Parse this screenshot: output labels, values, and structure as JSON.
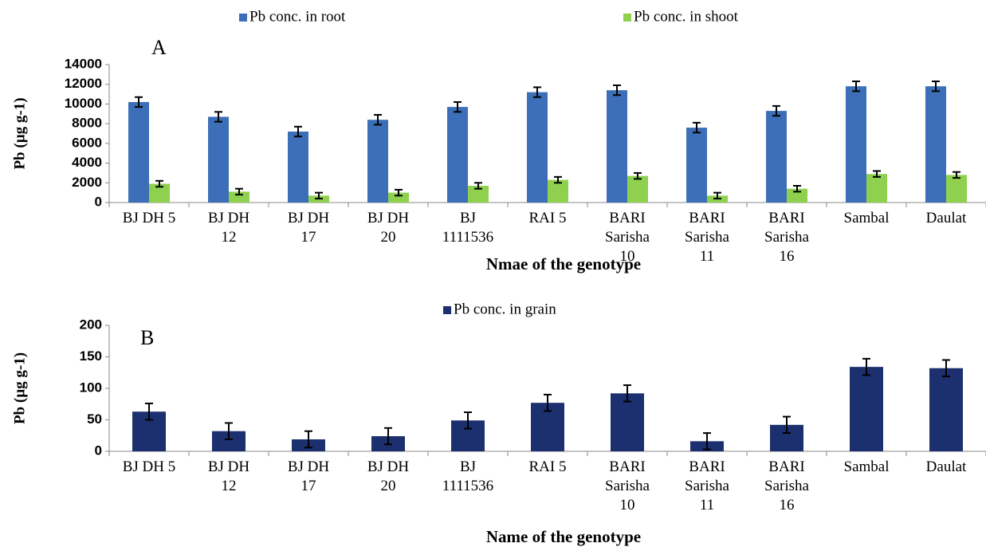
{
  "chart_data": [
    {
      "type": "bar",
      "panel_label": "A",
      "categories": [
        "BJ DH 5",
        "BJ DH\n12",
        "BJ DH\n17",
        "BJ DH\n20",
        "BJ\n1111536",
        "RAI 5",
        "BARI\nSarisha\n10",
        "BARI\nSarisha\n11",
        "BARI\nSarisha\n16",
        "Sambal",
        "Daulat"
      ],
      "xlabel": "Nmae of the genotype",
      "ylabel": "Pb (µg g-1)",
      "ylim": [
        0,
        14000
      ],
      "yticks": [
        0,
        2000,
        4000,
        6000,
        8000,
        10000,
        12000,
        14000
      ],
      "legend": "top",
      "series": [
        {
          "name": "Pb conc. in root",
          "color": "#3d6fb8",
          "values": [
            10200,
            8700,
            7200,
            8400,
            9700,
            11200,
            11400,
            7600,
            9300,
            11800,
            11800
          ],
          "errors": [
            500,
            500,
            500,
            500,
            500,
            500,
            500,
            500,
            500,
            500,
            500
          ]
        },
        {
          "name": "Pb conc. in shoot",
          "color": "#8fd14f",
          "values": [
            1900,
            1100,
            700,
            1000,
            1700,
            2300,
            2700,
            700,
            1400,
            2900,
            2800
          ],
          "errors": [
            300,
            300,
            300,
            300,
            300,
            300,
            300,
            300,
            300,
            300,
            300
          ]
        }
      ]
    },
    {
      "type": "bar",
      "panel_label": "B",
      "categories": [
        "BJ DH 5",
        "BJ DH\n12",
        "BJ DH\n17",
        "BJ DH\n20",
        "BJ\n1111536",
        "RAI 5",
        "BARI\nSarisha\n10",
        "BARI\nSarisha\n11",
        "BARI\nSarisha\n16",
        "Sambal",
        "Daulat"
      ],
      "xlabel": "Name of the genotype",
      "ylabel": "Pb (µg g-1)",
      "ylim": [
        0,
        200
      ],
      "yticks": [
        0,
        50,
        100,
        150,
        200
      ],
      "legend": "top",
      "series": [
        {
          "name": "Pb conc. in grain",
          "color": "#1c2f6e",
          "values": [
            63,
            32,
            19,
            24,
            49,
            77,
            92,
            16,
            42,
            134,
            132
          ],
          "errors": [
            13,
            13,
            13,
            13,
            13,
            13,
            13,
            13,
            13,
            13,
            13
          ]
        }
      ]
    }
  ]
}
